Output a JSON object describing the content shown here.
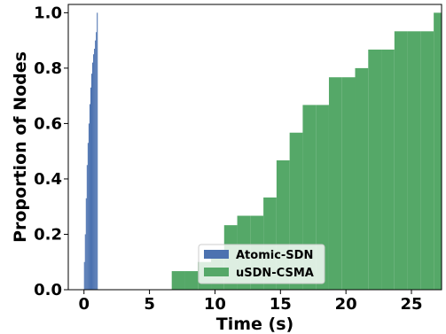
{
  "chart_data": {
    "type": "histogram",
    "xlabel": "Time (s)",
    "ylabel": "Proportion of Nodes",
    "xlim": [
      -1.2,
      27.3
    ],
    "ylim": [
      0,
      1.03
    ],
    "xticks": [
      0,
      5,
      10,
      15,
      20,
      25
    ],
    "xtick_labels": [
      "0",
      "5",
      "10",
      "15",
      "20",
      "25"
    ],
    "yticks": [
      0.0,
      0.2,
      0.4,
      0.6,
      0.8,
      1.0
    ],
    "ytick_labels": [
      "0.0",
      "0.2",
      "0.4",
      "0.6",
      "0.8",
      "1.0"
    ],
    "grid": false,
    "legend_position": "bottom-center",
    "series": [
      {
        "name": "uSDN-CSMA",
        "color": "#55a868",
        "cumulative": true,
        "bin_edges": [
          6.7,
          7.7,
          8.7,
          9.7,
          10.7,
          11.7,
          12.7,
          13.7,
          14.7,
          15.7,
          16.7,
          17.7,
          18.7,
          19.7,
          20.7,
          21.7,
          22.7,
          23.7,
          24.7,
          25.7,
          26.7,
          27.7
        ],
        "values": [
          0.067,
          0.067,
          0.1,
          0.133,
          0.233,
          0.267,
          0.267,
          0.333,
          0.467,
          0.567,
          0.667,
          0.667,
          0.767,
          0.767,
          0.8,
          0.867,
          0.867,
          0.933,
          0.933,
          0.933,
          1.0
        ]
      },
      {
        "name": "Atomic-SDN",
        "color": "#4c72b0",
        "cumulative": true,
        "bin_edges": [
          0.0,
          0.07,
          0.14,
          0.21,
          0.28,
          0.35,
          0.42,
          0.49,
          0.56,
          0.63,
          0.7,
          0.77,
          0.84,
          0.91,
          0.98,
          1.05
        ],
        "values": [
          0.1,
          0.2,
          0.33,
          0.45,
          0.53,
          0.6,
          0.67,
          0.73,
          0.78,
          0.82,
          0.85,
          0.87,
          0.9,
          0.93,
          1.0
        ]
      }
    ]
  }
}
